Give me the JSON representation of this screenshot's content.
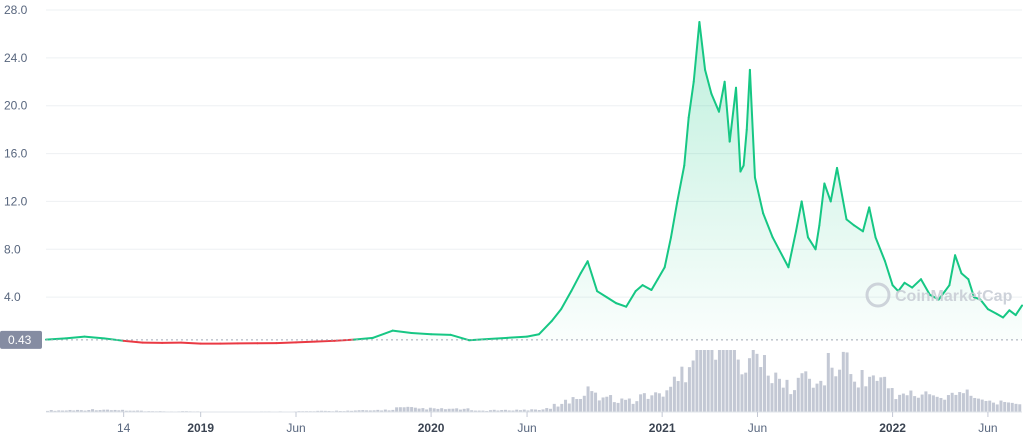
{
  "chart_data": {
    "type": "line",
    "title": "",
    "xlabel": "",
    "ylabel": "",
    "ylim": [
      0,
      28
    ],
    "yticks": [
      "4.0",
      "8.0",
      "12.0",
      "16.0",
      "20.0",
      "24.0",
      "28.0"
    ],
    "ytick_values": [
      4,
      8,
      12,
      16,
      20,
      24,
      28
    ],
    "xticks": [
      {
        "label": "14",
        "bold": false,
        "date": "2018-09-01"
      },
      {
        "label": "2019",
        "bold": true,
        "date": "2019-01-01"
      },
      {
        "label": "Jun",
        "bold": false,
        "date": "2019-06-01"
      },
      {
        "label": "2020",
        "bold": true,
        "date": "2020-01-01"
      },
      {
        "label": "Jun",
        "bold": false,
        "date": "2020-06-01"
      },
      {
        "label": "2021",
        "bold": true,
        "date": "2021-01-01"
      },
      {
        "label": "Jun",
        "bold": false,
        "date": "2021-06-01"
      },
      {
        "label": "2022",
        "bold": true,
        "date": "2022-01-01"
      },
      {
        "label": "Jun",
        "bold": false,
        "date": "2022-06-01"
      }
    ],
    "x_range": [
      "2018-05-01",
      "2022-07-25"
    ],
    "baseline": {
      "value": 0.43,
      "label": "0.43"
    },
    "grid": true,
    "colors": {
      "up": "#16c784",
      "down": "#ea3943",
      "volume": "#c3c8d4",
      "fill": "#16c784"
    },
    "series": [
      {
        "x": [
          "2018-05-01",
          "2018-06-01",
          "2018-07-01",
          "2018-08-01",
          "2018-09-01",
          "2018-10-01",
          "2018-11-01",
          "2018-12-01",
          "2019-01-01",
          "2019-02-01",
          "2019-03-01",
          "2019-04-01",
          "2019-05-01",
          "2019-06-01",
          "2019-07-01",
          "2019-08-01",
          "2019-09-01",
          "2019-10-01",
          "2019-11-01",
          "2019-12-01",
          "2020-01-01",
          "2020-02-01",
          "2020-03-01",
          "2020-04-01",
          "2020-05-01",
          "2020-06-01",
          "2020-06-20",
          "2020-07-10",
          "2020-07-25",
          "2020-08-10",
          "2020-08-25",
          "2020-09-05",
          "2020-09-20",
          "2020-10-05",
          "2020-10-20",
          "2020-11-05",
          "2020-11-20",
          "2020-12-01",
          "2020-12-15",
          "2020-12-25",
          "2021-01-05",
          "2021-01-15",
          "2021-01-25",
          "2021-02-05",
          "2021-02-12",
          "2021-02-20",
          "2021-03-01",
          "2021-03-10",
          "2021-03-20",
          "2021-04-01",
          "2021-04-10",
          "2021-04-18",
          "2021-04-28",
          "2021-05-05",
          "2021-05-10",
          "2021-05-15",
          "2021-05-20",
          "2021-05-28",
          "2021-06-10",
          "2021-06-25",
          "2021-07-05",
          "2021-07-20",
          "2021-08-01",
          "2021-08-10",
          "2021-08-20",
          "2021-09-01",
          "2021-09-07",
          "2021-09-15",
          "2021-09-25",
          "2021-10-05",
          "2021-10-20",
          "2021-11-01",
          "2021-11-15",
          "2021-11-25",
          "2021-12-05",
          "2021-12-20",
          "2022-01-01",
          "2022-01-10",
          "2022-01-20",
          "2022-02-01",
          "2022-02-15",
          "2022-03-01",
          "2022-03-15",
          "2022-03-25",
          "2022-04-01",
          "2022-04-10",
          "2022-04-20",
          "2022-05-01",
          "2022-05-10",
          "2022-05-20",
          "2022-06-01",
          "2022-06-15",
          "2022-06-25",
          "2022-07-05",
          "2022-07-15",
          "2022-07-25"
        ],
        "y": [
          0.45,
          0.55,
          0.7,
          0.55,
          0.35,
          0.2,
          0.18,
          0.2,
          0.12,
          0.12,
          0.14,
          0.15,
          0.16,
          0.22,
          0.28,
          0.35,
          0.45,
          0.6,
          1.2,
          1.0,
          0.9,
          0.85,
          0.4,
          0.5,
          0.6,
          0.7,
          0.9,
          2.0,
          3.0,
          4.5,
          6.0,
          7.0,
          4.5,
          4.0,
          3.5,
          3.2,
          4.5,
          5.0,
          4.6,
          5.5,
          6.5,
          9.0,
          12.0,
          15.0,
          19.0,
          22.0,
          27.0,
          23.0,
          21.0,
          19.5,
          22.0,
          17.0,
          21.5,
          14.5,
          15.0,
          18.0,
          23.0,
          14.0,
          11.0,
          9.0,
          8.0,
          6.5,
          9.5,
          12.0,
          9.0,
          8.0,
          10.0,
          13.5,
          12.0,
          14.8,
          10.5,
          10.0,
          9.5,
          11.5,
          9.0,
          7.0,
          5.0,
          4.5,
          5.2,
          4.8,
          5.5,
          4.2,
          3.8,
          4.5,
          5.0,
          7.5,
          6.0,
          5.5,
          4.0,
          3.8,
          3.0,
          2.6,
          2.3,
          2.9,
          2.5,
          3.3
        ]
      }
    ],
    "watermark": "CoinMarketCap"
  }
}
